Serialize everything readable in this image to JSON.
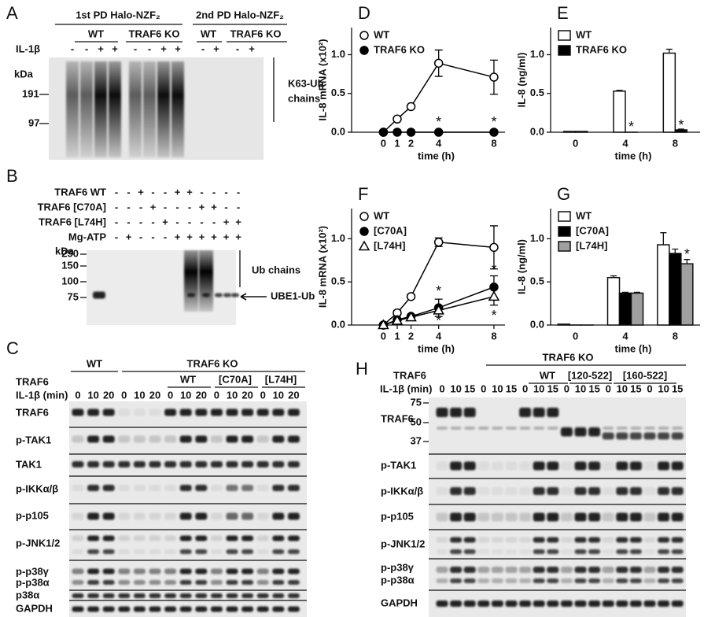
{
  "panels": {
    "A": {
      "label": "A",
      "headers": [
        "1st PD Halo-NZF₂",
        "2nd PD Halo-NZF₂"
      ],
      "groups": [
        "WT",
        "TRAF6 KO",
        "WT",
        "TRAF6 KO"
      ],
      "row_label": "IL-1β",
      "signs": [
        "-",
        "-",
        "+",
        "+",
        "-",
        "-",
        "+",
        "+",
        "-",
        "+",
        "-",
        "+"
      ],
      "kda": "kDa",
      "markers": [
        "191",
        "97"
      ],
      "right": [
        "K63-Ub",
        "chains"
      ]
    },
    "B": {
      "label": "B",
      "rows": [
        {
          "name": "TRAF6 WT",
          "signs": [
            "-",
            "-",
            "+",
            "-",
            "-",
            "+",
            "+",
            "-",
            "-",
            "-",
            "-"
          ]
        },
        {
          "name": "TRAF6 [C70A]",
          "signs": [
            "-",
            "-",
            "-",
            "+",
            "-",
            "-",
            "-",
            "+",
            "+",
            "-",
            "-"
          ]
        },
        {
          "name": "TRAF6 [L74H]",
          "signs": [
            "-",
            "-",
            "-",
            "-",
            "+",
            "-",
            "-",
            "-",
            "-",
            "+",
            "+"
          ]
        },
        {
          "name": "Mg-ATP",
          "signs": [
            "-",
            "+",
            "-",
            "-",
            "-",
            "+",
            "+",
            "+",
            "+",
            "+",
            "+"
          ]
        }
      ],
      "kda": "kDa",
      "markers": [
        "250",
        "150",
        "100",
        "75"
      ],
      "bands": [
        "Ub chains",
        "UBE1-Ub"
      ]
    },
    "C": {
      "label": "C",
      "groups": [
        "WT",
        "TRAF6 KO"
      ],
      "subgroups": [
        "WT",
        "[C70A]",
        "[L74H]"
      ],
      "row_labels": [
        "TRAF6",
        "IL-1β (min)"
      ],
      "times": [
        "0",
        "10",
        "20",
        "0",
        "10",
        "20",
        "0",
        "10",
        "20",
        "0",
        "10",
        "20",
        "0",
        "10",
        "20"
      ],
      "blots": [
        "TRAF6",
        "p-TAK1",
        "TAK1",
        "p-IKKα/β",
        "p-p105",
        "p-JNK1/2",
        "p-p38γ",
        "p-p38α",
        "p38α",
        "GAPDH"
      ]
    },
    "H": {
      "label": "H",
      "group": "TRAF6 KO",
      "subgroups": [
        "WT",
        "[120-522]",
        "[160-522]"
      ],
      "row_labels": [
        "TRAF6",
        "IL-1β (min)"
      ],
      "times": [
        "0",
        "10",
        "15",
        "0",
        "10",
        "15",
        "0",
        "10",
        "15",
        "0",
        "10",
        "15",
        "0",
        "10",
        "15",
        "0",
        "10",
        "15"
      ],
      "markers": [
        "75",
        "50",
        "37"
      ],
      "blots": [
        "TRAF6",
        "p-TAK1",
        "p-IKKα/β",
        "p-p105",
        "p-JNK1/2",
        "p-p38γ",
        "p-p38α",
        "GAPDH"
      ]
    }
  },
  "chart_data": [
    {
      "type": "line",
      "panel": "D",
      "ylabel": "IL-8 mRNA (x10²)",
      "xlabel": "time (h)",
      "x": [
        0,
        1,
        2,
        4,
        8
      ],
      "xlim": [
        -2.3,
        8.8
      ],
      "xticks": [
        0,
        1,
        2,
        4,
        8
      ],
      "ylim": [
        0,
        1.35
      ],
      "yticks": [
        {
          "value": 0,
          "label": "0.0"
        },
        {
          "value": 0.5,
          "label": "0.5"
        },
        {
          "value": 1,
          "label": "1.0"
        }
      ],
      "series": [
        {
          "name": "WT",
          "color": "#000000",
          "marker": "open-circle",
          "values": [
            0,
            0.17,
            0.33,
            0.89,
            0.71
          ],
          "errors": [
            0,
            0.02,
            0.02,
            0.17,
            0.22
          ]
        },
        {
          "name": "TRAF6 KO",
          "color": "#000000",
          "marker": "filled-circle",
          "values": [
            0,
            0,
            0,
            0,
            0
          ],
          "errors": [
            0,
            0,
            0,
            0,
            0
          ]
        }
      ],
      "annotations": [
        {
          "text": "*",
          "x": 4,
          "y": 0.12
        },
        {
          "text": "*",
          "x": 8,
          "y": 0.12
        }
      ]
    },
    {
      "type": "bar",
      "panel": "E",
      "ylabel": "IL-8 (ng/ml)",
      "xlabel": "time (h)",
      "categories": [
        "0",
        "4",
        "8"
      ],
      "ylim": [
        0,
        1.35
      ],
      "yticks": [
        {
          "value": 0,
          "label": "0.0"
        },
        {
          "value": 0.5,
          "label": "0.5"
        },
        {
          "value": 1,
          "label": "1.0"
        }
      ],
      "series": [
        {
          "name": "WT",
          "color": "#ffffff",
          "values": [
            0.01,
            0.53,
            1.02
          ],
          "errors": [
            0,
            0.01,
            0.05
          ]
        },
        {
          "name": "TRAF6 KO",
          "color": "#000000",
          "values": [
            0.01,
            0,
            0.03
          ],
          "errors": [
            0,
            0,
            0.01
          ]
        }
      ],
      "annotations": [
        {
          "text": "*",
          "x": "4",
          "series": 1,
          "y": 0.06
        },
        {
          "text": "*",
          "x": "8",
          "series": 1,
          "y": 0.08
        }
      ]
    },
    {
      "type": "line",
      "panel": "F",
      "ylabel": "IL-8 mRNA (x10²)",
      "xlabel": "time (h)",
      "x": [
        0,
        1,
        2,
        4,
        8
      ],
      "xlim": [
        -2.3,
        8.8
      ],
      "xticks": [
        0,
        1,
        2,
        4,
        8
      ],
      "ylim": [
        0,
        1.35
      ],
      "yticks": [
        {
          "value": 0,
          "label": "0.0"
        },
        {
          "value": 0.5,
          "label": "0.5"
        },
        {
          "value": 1,
          "label": "1.0"
        }
      ],
      "series": [
        {
          "name": "WT",
          "color": "#000000",
          "marker": "open-circle",
          "values": [
            0,
            0.14,
            0.33,
            0.96,
            0.9
          ],
          "errors": [
            0,
            0.03,
            0.02,
            0.05,
            0.25
          ]
        },
        {
          "name": "[C70A]",
          "color": "#000000",
          "marker": "filled-circle",
          "values": [
            0,
            0.06,
            0.1,
            0.2,
            0.44
          ],
          "errors": [
            0,
            0.02,
            0.02,
            0.1,
            0.13
          ]
        },
        {
          "name": "[L74H]",
          "color": "#000000",
          "marker": "open-triangle",
          "values": [
            0,
            0.05,
            0.09,
            0.17,
            0.33
          ],
          "errors": [
            0,
            0.02,
            0.02,
            0.04,
            0.1
          ]
        }
      ],
      "annotations": [
        {
          "text": "*",
          "x": 4,
          "y": 0.38
        },
        {
          "text": "*",
          "x": 4,
          "y": 0.04
        },
        {
          "text": "*",
          "x": 8,
          "y": 0.63
        },
        {
          "text": "*",
          "x": 8,
          "y": 0.1
        }
      ]
    },
    {
      "type": "bar",
      "panel": "G",
      "ylabel": "IL-8 (ng/ml)",
      "xlabel": "time (h)",
      "categories": [
        "0",
        "4",
        "8"
      ],
      "ylim": [
        0,
        1.35
      ],
      "yticks": [
        {
          "value": 0,
          "label": "0.0"
        },
        {
          "value": 0.5,
          "label": "0.5"
        },
        {
          "value": 1,
          "label": "1.0"
        }
      ],
      "series": [
        {
          "name": "WT",
          "color": "#ffffff",
          "values": [
            0.01,
            0.55,
            0.93
          ],
          "errors": [
            0,
            0.02,
            0.14
          ]
        },
        {
          "name": "[C70A]",
          "color": "#000000",
          "values": [
            0,
            0.37,
            0.83
          ],
          "errors": [
            0,
            0.01,
            0.05
          ]
        },
        {
          "name": "[L74H]",
          "color": "#a0a0a0",
          "values": [
            0,
            0.37,
            0.71
          ],
          "errors": [
            0,
            0.01,
            0.05
          ]
        }
      ],
      "annotations": [
        {
          "text": "*",
          "x": "8",
          "series": 2,
          "y": 0.81
        }
      ]
    }
  ]
}
